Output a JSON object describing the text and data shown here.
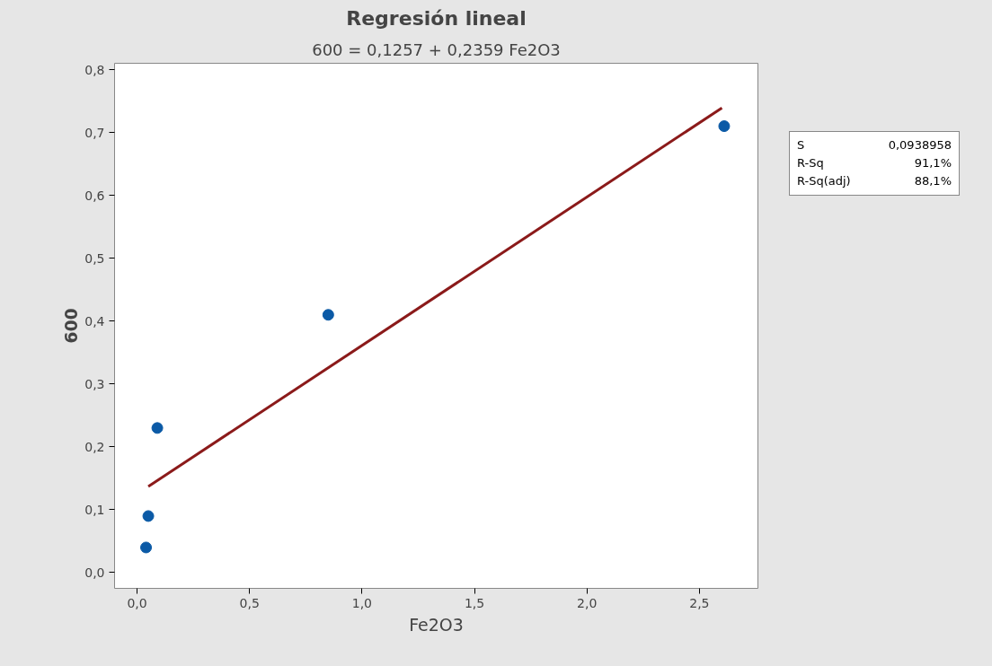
{
  "chart_data": {
    "type": "scatter",
    "title": "Regresión lineal",
    "subtitle": "600 = 0,1257 + 0,2359 Fe2O3",
    "xlabel": "Fe2O3",
    "ylabel": "600",
    "x": [
      0.04,
      0.05,
      0.09,
      0.85,
      2.61
    ],
    "series": [
      {
        "color": "#0b5aa6",
        "values": [
          0.04,
          0.09,
          0.23,
          0.41,
          0.71
        ],
        "marker": "circle"
      },
      {
        "type": "line",
        "color": "#8b1a1a",
        "x": [
          0.05,
          2.6
        ],
        "values": [
          0.137,
          0.739
        ],
        "line_style": "solid"
      }
    ],
    "annotations": [
      "S",
      "0,0938958",
      "R-Sq",
      "91,1%",
      "R-Sq(adj)",
      "88,1%"
    ],
    "xlim": [
      -0.1,
      2.76
    ],
    "ylim": [
      -0.025,
      0.81
    ],
    "xticks": [
      {
        "value": 0,
        "label": "0,0"
      },
      {
        "value": 0.5,
        "label": "0,5"
      },
      {
        "value": 1,
        "label": "1,0"
      },
      {
        "value": 1.5,
        "label": "1,5"
      },
      {
        "value": 2,
        "label": "2,0"
      },
      {
        "value": 2.5,
        "label": "2,5"
      }
    ],
    "yticks": [
      {
        "value": 0,
        "label": "0,0"
      },
      {
        "value": 0.1,
        "label": "0,1"
      },
      {
        "value": 0.2,
        "label": "0,2"
      },
      {
        "value": 0.3,
        "label": "0,3"
      },
      {
        "value": 0.4,
        "label": "0,4"
      },
      {
        "value": 0.5,
        "label": "0,5"
      },
      {
        "value": 0.6,
        "label": "0,6"
      },
      {
        "value": 0.7,
        "label": "0,7"
      },
      {
        "value": 0.8,
        "label": "0,8"
      }
    ],
    "grid": false
  }
}
